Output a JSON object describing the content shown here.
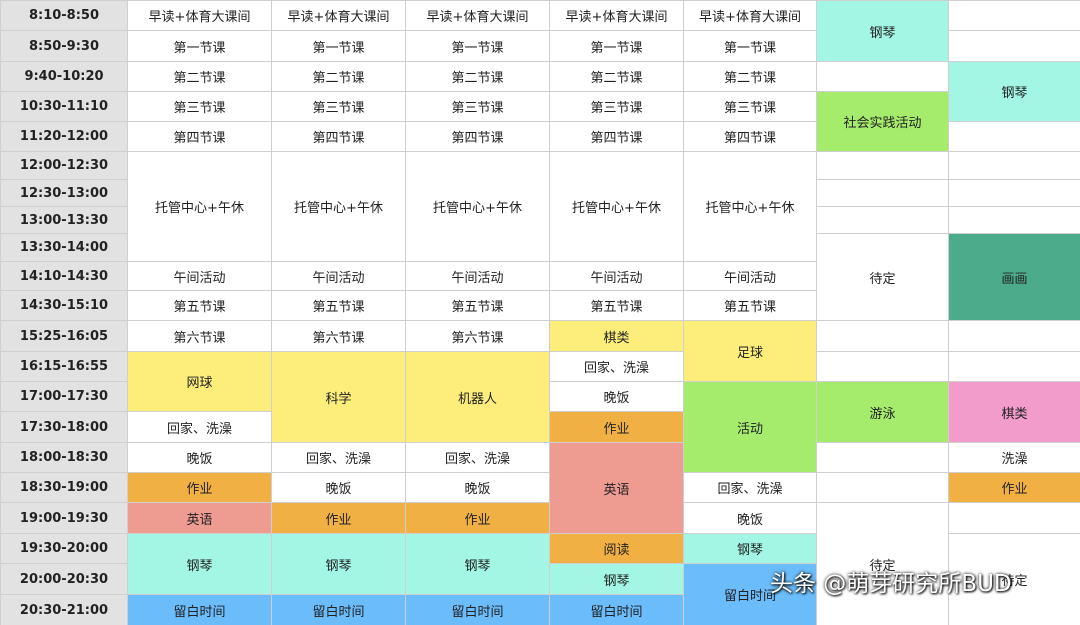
{
  "table": {
    "rows": [
      {
        "time": "8:10-8:50",
        "cells": [
          "早读+体育大课间",
          "早读+体育大课间",
          "早读+体育大课间",
          "早读+体育大课间",
          "早读+体育大课间",
          "钢琴"
        ]
      },
      {
        "time": "8:50-9:30",
        "cells": [
          "第一节课",
          "第一节课",
          "第一节课",
          "第一节课",
          "第一节课"
        ]
      },
      {
        "time": "9:40-10:20",
        "cells": [
          "第二节课",
          "第二节课",
          "第二节课",
          "第二节课",
          "第二节课",
          "钢琴"
        ]
      },
      {
        "time": "10:30-11:10",
        "cells": [
          "第三节课",
          "第三节课",
          "第三节课",
          "第三节课",
          "第三节课",
          "社会实践活动"
        ]
      },
      {
        "time": "11:20-12:00",
        "cells": [
          "第四节课",
          "第四节课",
          "第四节课",
          "第四节课",
          "第四节课"
        ]
      },
      {
        "time": "12:00-12:30",
        "cells": [
          "托管中心+午休",
          "托管中心+午休",
          "托管中心+午休",
          "托管中心+午休",
          "托管中心+午休"
        ]
      },
      {
        "time": "12:30-13:00"
      },
      {
        "time": "13:00-13:30"
      },
      {
        "time": "13:30-14:00",
        "cells": [
          "待定",
          "画画"
        ]
      },
      {
        "time": "14:10-14:30",
        "cells": [
          "午间活动",
          "午间活动",
          "午间活动",
          "午间活动",
          "午间活动"
        ]
      },
      {
        "time": "14:30-15:10",
        "cells": [
          "第五节课",
          "第五节课",
          "第五节课",
          "第五节课",
          "第五节课"
        ]
      },
      {
        "time": "15:25-16:05",
        "cells": [
          "第六节课",
          "第六节课",
          "第六节课",
          "棋类",
          "足球"
        ]
      },
      {
        "time": "16:15-16:55",
        "cells": [
          "网球",
          "科学",
          "机器人",
          "回家、洗澡"
        ]
      },
      {
        "time": "17:00-17:30",
        "cells": [
          "晚饭",
          "活动",
          "游泳",
          "棋类"
        ]
      },
      {
        "time": "17:30-18:00",
        "cells": [
          "回家、洗澡",
          "作业"
        ]
      },
      {
        "time": "18:00-18:30",
        "cells": [
          "晚饭",
          "回家、洗澡",
          "回家、洗澡",
          "英语",
          "洗澡"
        ]
      },
      {
        "time": "18:30-19:00",
        "cells": [
          "作业",
          "晚饭",
          "晚饭",
          "回家、洗澡",
          "作业"
        ]
      },
      {
        "time": "19:00-19:30",
        "cells": [
          "英语",
          "作业",
          "作业",
          "晚饭",
          "待定"
        ]
      },
      {
        "time": "19:30-20:00",
        "cells": [
          "钢琴",
          "钢琴",
          "钢琴",
          "阅读",
          "钢琴",
          "待定"
        ]
      },
      {
        "time": "20:00-20:30",
        "cells": [
          "钢琴",
          "留白时间"
        ]
      },
      {
        "time": "20:30-21:00",
        "cells": [
          "留白时间",
          "留白时间",
          "留白时间",
          "留白时间"
        ]
      }
    ]
  },
  "watermark": "头条 @萌芽研究所BUD"
}
